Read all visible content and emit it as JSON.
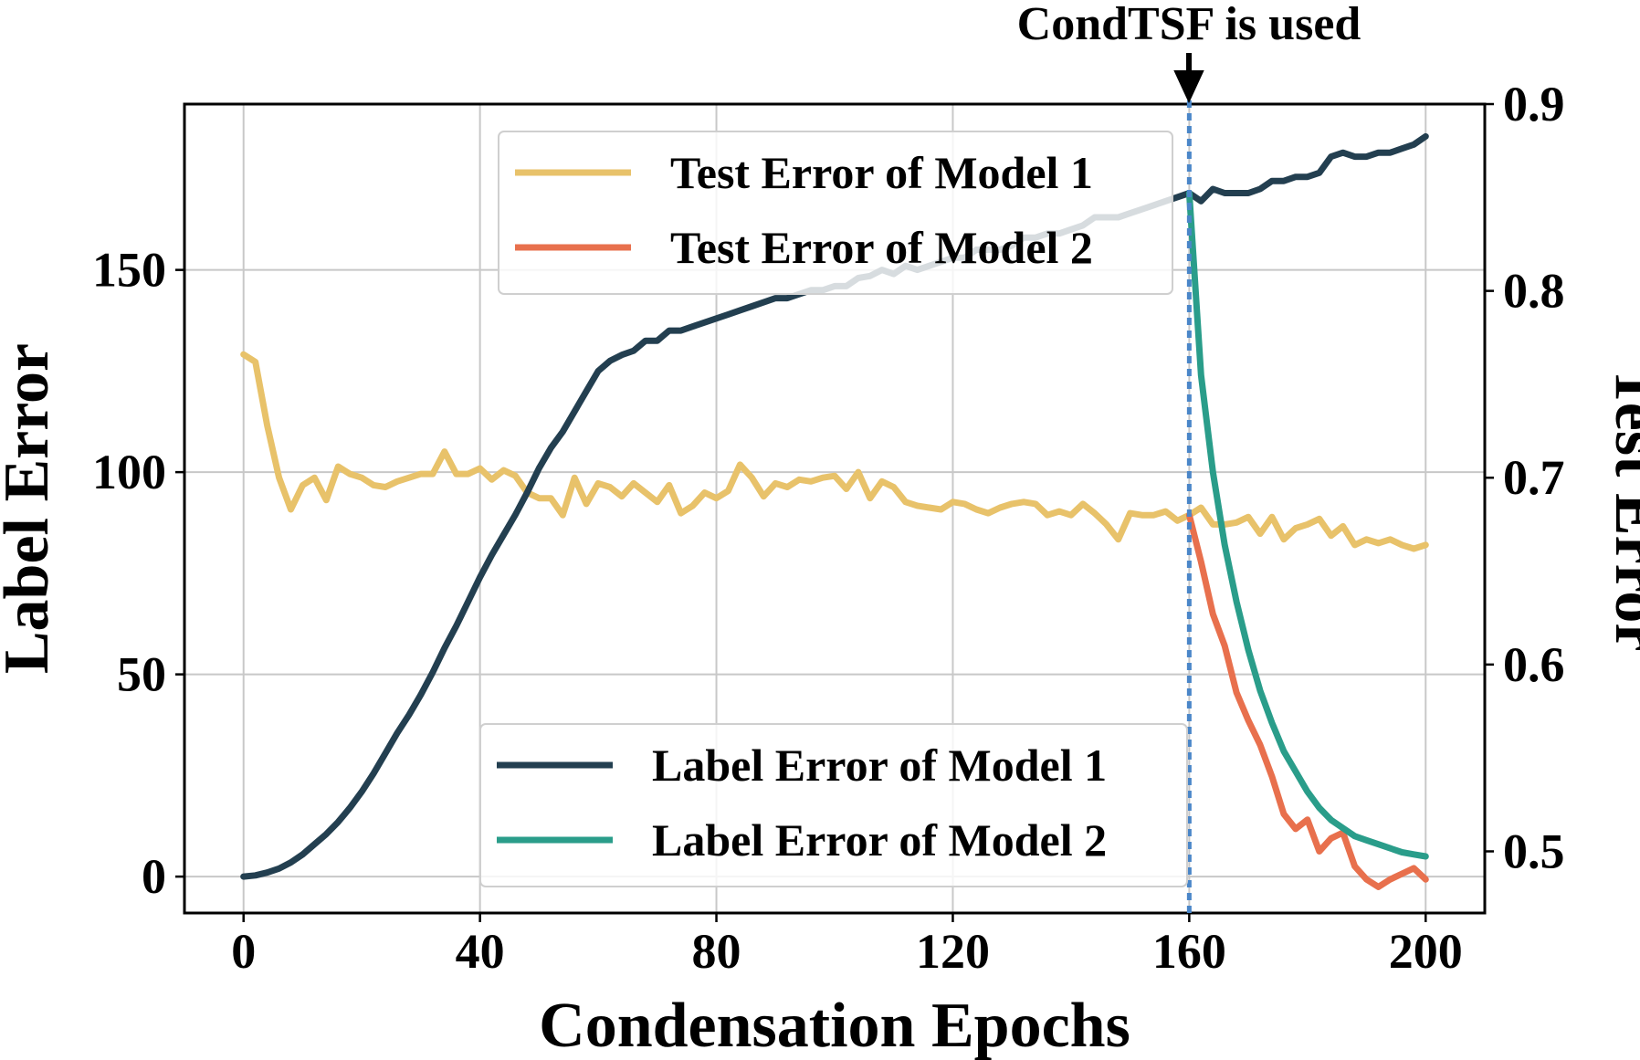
{
  "chart_data": {
    "type": "line",
    "annotation": "CondTSF is used",
    "annotation_x": 160,
    "xlabel": "Condensation Epochs",
    "ylabel_left": "Label Error",
    "ylabel_right": "Test Error",
    "xlim": [
      -10,
      210
    ],
    "ylim_left": [
      -9,
      191
    ],
    "ylim_right": [
      0.467,
      0.9
    ],
    "xticks": [
      0,
      40,
      80,
      120,
      160,
      200
    ],
    "yticks_left": [
      0,
      50,
      100,
      150
    ],
    "yticks_right": [
      0.5,
      0.6,
      0.7,
      0.8,
      0.9
    ],
    "ytick_labels_right": [
      "0.5",
      "0.6",
      "0.7",
      "0.8",
      "0.9"
    ],
    "grid": true,
    "legend_test": {
      "placement": "upper center",
      "entries": [
        "Test Error of Model 1",
        "Test Error of Model 2"
      ]
    },
    "legend_label": {
      "placement": "lower center",
      "entries": [
        "Label Error of Model 1",
        "Label Error of Model 2"
      ]
    },
    "series": [
      {
        "name": "Test Error of Model 1",
        "axis": "right",
        "color": "#e8c26a",
        "x": [
          0,
          2,
          4,
          6,
          8,
          10,
          12,
          14,
          16,
          18,
          20,
          22,
          24,
          26,
          28,
          30,
          32,
          34,
          36,
          38,
          40,
          42,
          44,
          46,
          48,
          50,
          52,
          54,
          56,
          58,
          60,
          62,
          64,
          66,
          68,
          70,
          72,
          74,
          76,
          78,
          80,
          82,
          84,
          86,
          88,
          90,
          92,
          94,
          96,
          98,
          100,
          102,
          104,
          106,
          108,
          110,
          112,
          114,
          116,
          118,
          120,
          122,
          124,
          126,
          128,
          130,
          132,
          134,
          136,
          138,
          140,
          142,
          144,
          146,
          148,
          150,
          152,
          154,
          156,
          158,
          160,
          162,
          164,
          166,
          168,
          170,
          172,
          174,
          176,
          178,
          180,
          182,
          184,
          186,
          188,
          190,
          192,
          194,
          196,
          198,
          200
        ],
        "values": [
          0.766,
          0.762,
          0.728,
          0.7,
          0.683,
          0.696,
          0.7,
          0.688,
          0.706,
          0.702,
          0.7,
          0.696,
          0.695,
          0.698,
          0.7,
          0.702,
          0.702,
          0.714,
          0.702,
          0.702,
          0.705,
          0.699,
          0.704,
          0.701,
          0.692,
          0.689,
          0.689,
          0.68,
          0.7,
          0.686,
          0.697,
          0.695,
          0.69,
          0.697,
          0.692,
          0.687,
          0.696,
          0.681,
          0.685,
          0.692,
          0.689,
          0.693,
          0.707,
          0.7,
          0.69,
          0.697,
          0.695,
          0.699,
          0.698,
          0.7,
          0.701,
          0.694,
          0.703,
          0.689,
          0.698,
          0.695,
          0.687,
          0.685,
          0.684,
          0.683,
          0.687,
          0.686,
          0.683,
          0.681,
          0.684,
          0.686,
          0.687,
          0.686,
          0.68,
          0.682,
          0.68,
          0.686,
          0.681,
          0.675,
          0.667,
          0.681,
          0.68,
          0.68,
          0.682,
          0.677,
          0.68,
          0.684,
          0.675,
          0.675,
          0.676,
          0.679,
          0.67,
          0.679,
          0.667,
          0.673,
          0.675,
          0.678,
          0.669,
          0.674,
          0.664,
          0.667,
          0.665,
          0.667,
          0.664,
          0.662,
          0.664
        ]
      },
      {
        "name": "Test Error of Model 2",
        "axis": "right",
        "color": "#e8704d",
        "x": [
          160,
          162,
          164,
          166,
          168,
          170,
          172,
          174,
          176,
          178,
          180,
          182,
          184,
          186,
          188,
          190,
          192,
          194,
          196,
          198,
          200
        ],
        "values": [
          0.68,
          0.655,
          0.627,
          0.61,
          0.585,
          0.57,
          0.557,
          0.54,
          0.52,
          0.512,
          0.517,
          0.5,
          0.507,
          0.51,
          0.492,
          0.485,
          0.481,
          0.485,
          0.488,
          0.491,
          0.485
        ]
      },
      {
        "name": "Label Error of Model 1",
        "axis": "left",
        "color": "#233f50",
        "x": [
          0,
          2,
          4,
          6,
          8,
          10,
          12,
          14,
          16,
          18,
          20,
          22,
          24,
          26,
          28,
          30,
          32,
          34,
          36,
          38,
          40,
          42,
          44,
          46,
          48,
          50,
          52,
          54,
          56,
          58,
          60,
          62,
          64,
          66,
          68,
          70,
          72,
          74,
          76,
          78,
          80,
          82,
          84,
          86,
          88,
          90,
          92,
          94,
          96,
          98,
          100,
          102,
          104,
          106,
          108,
          110,
          112,
          114,
          116,
          118,
          120,
          122,
          124,
          126,
          128,
          130,
          132,
          134,
          136,
          138,
          140,
          142,
          144,
          146,
          148,
          150,
          152,
          154,
          156,
          158,
          160,
          162,
          164,
          166,
          168,
          170,
          172,
          174,
          176,
          178,
          180,
          182,
          184,
          186,
          188,
          190,
          192,
          194,
          196,
          198,
          200
        ],
        "values": [
          0,
          0.3,
          1,
          2,
          3.5,
          5.5,
          8,
          10.5,
          13.5,
          17,
          21,
          25.5,
          30.5,
          35.5,
          40,
          45,
          50.5,
          56.5,
          62,
          68,
          74,
          79.5,
          84.5,
          89.5,
          95,
          101,
          106,
          110,
          115,
          120,
          125,
          127.5,
          129,
          130,
          132.5,
          132.5,
          135,
          135,
          136,
          137,
          138,
          139,
          140,
          141,
          142,
          143,
          143,
          144,
          145,
          145,
          146,
          146,
          148,
          148.5,
          150,
          149,
          151,
          150,
          151,
          152,
          153,
          153,
          155,
          155,
          155,
          156,
          158,
          158,
          159,
          159,
          160,
          161,
          163,
          163,
          163,
          164,
          165,
          166,
          167,
          168,
          169,
          167,
          170,
          169,
          169,
          169,
          170,
          172,
          172,
          173,
          173,
          174,
          178,
          179,
          178,
          178,
          179,
          179,
          180,
          181,
          183
        ]
      },
      {
        "name": "Label Error of Model 2",
        "axis": "left",
        "color": "#2a9d8a",
        "x": [
          160,
          162,
          164,
          166,
          168,
          170,
          172,
          174,
          176,
          178,
          180,
          182,
          184,
          186,
          188,
          190,
          192,
          194,
          196,
          198,
          200
        ],
        "values": [
          169,
          124,
          100,
          82,
          68,
          56,
          46,
          38,
          31,
          26,
          21,
          17,
          14,
          12,
          10,
          9,
          8,
          7,
          6,
          5.5,
          5
        ]
      }
    ]
  }
}
